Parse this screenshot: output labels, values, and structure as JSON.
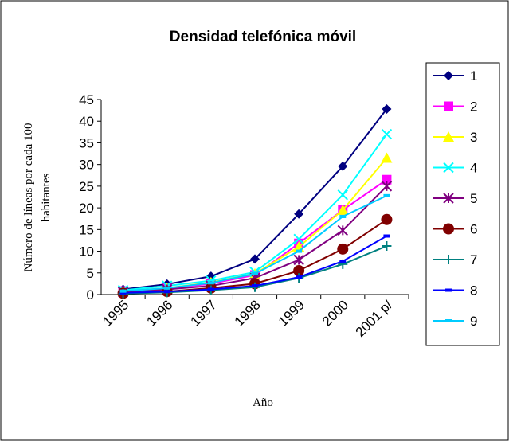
{
  "chart_data": {
    "type": "line",
    "title": "Densidad telefónica móvil",
    "ylabel": [
      "Número de líneas por cada 100",
      "habitantes"
    ],
    "xlabel": "Año",
    "categories": [
      "1995",
      "1996",
      "1997",
      "1998",
      "1999",
      "2000",
      "2001 p/"
    ],
    "ylim": [
      0,
      45
    ],
    "yticks": [
      0,
      5,
      10,
      15,
      20,
      25,
      30,
      35,
      40,
      45
    ],
    "legend": "right",
    "series": [
      {
        "name": "1",
        "color": "#000080",
        "marker": "diamond",
        "values": [
          1.2,
          2.4,
          4.2,
          8.2,
          18.6,
          29.6,
          42.8
        ]
      },
      {
        "name": "2",
        "color": "#FF00FF",
        "marker": "square",
        "values": [
          0.8,
          1.4,
          2.5,
          4.5,
          11.8,
          19.5,
          26.5
        ]
      },
      {
        "name": "3",
        "color": "#FFFF00",
        "marker": "triangle",
        "values": [
          0.8,
          1.5,
          2.8,
          4.8,
          11,
          19.5,
          31.5
        ]
      },
      {
        "name": "4",
        "color": "#00FFFF",
        "marker": "x",
        "values": [
          1.0,
          2.0,
          3.2,
          5.2,
          12.8,
          23,
          37
        ]
      },
      {
        "name": "5",
        "color": "#800080",
        "marker": "star",
        "values": [
          0.6,
          1.2,
          2.0,
          3.8,
          8,
          14.8,
          25
        ]
      },
      {
        "name": "6",
        "color": "#800000",
        "marker": "circle",
        "values": [
          0.3,
          0.7,
          1.5,
          2.5,
          5.5,
          10.5,
          17.3
        ]
      },
      {
        "name": "7",
        "color": "#008080",
        "marker": "plus",
        "values": [
          0.2,
          0.5,
          1,
          1.7,
          3.8,
          7,
          11.2
        ]
      },
      {
        "name": "8",
        "color": "#0000FF",
        "marker": "dash",
        "values": [
          0.4,
          0.7,
          1.2,
          2,
          4,
          7.7,
          13.5
        ]
      },
      {
        "name": "9",
        "color": "#00CCFF",
        "marker": "dash",
        "values": [
          0.8,
          1.5,
          2.7,
          4.8,
          10,
          18,
          22.8
        ]
      }
    ]
  }
}
